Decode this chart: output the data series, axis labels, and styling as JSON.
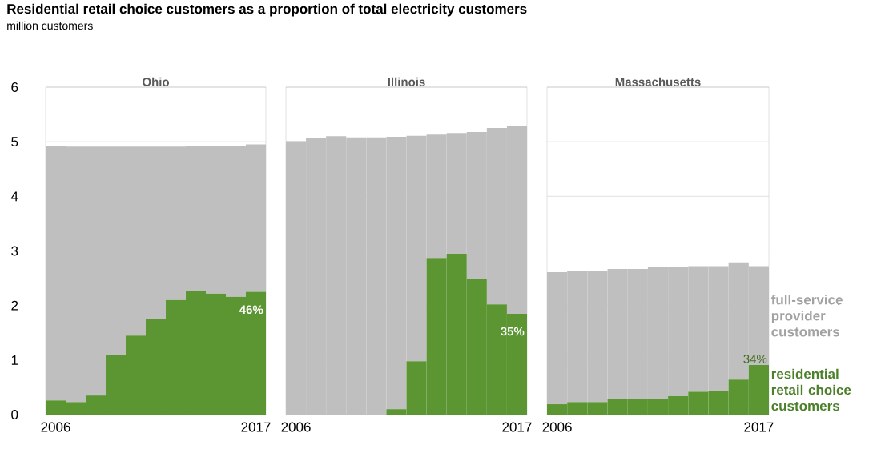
{
  "chart_data": [
    {
      "type": "bar",
      "title": "Residential retail choice customers as a proportion of total electricity customers",
      "ylabel": "million customers",
      "subtitle": "Ohio",
      "stacked": true,
      "grid": "y",
      "categories": [
        "2006",
        null,
        null,
        null,
        null,
        null,
        null,
        null,
        null,
        null,
        "2017"
      ],
      "ylim": [
        0,
        6
      ],
      "yticks": [
        0,
        1,
        2,
        3,
        4,
        5,
        6
      ],
      "series": [
        {
          "color": "#5b9632",
          "values": [
            0.26,
            0.23,
            0.35,
            1.09,
            1.45,
            1.76,
            2.1,
            2.27,
            2.22,
            2.16,
            2.25
          ]
        },
        {
          "color": "#bfbfbf",
          "values": [
            4.67,
            4.68,
            4.56,
            3.82,
            3.46,
            3.15,
            2.81,
            2.65,
            2.7,
            2.76,
            2.7
          ]
        }
      ],
      "annotations": [
        "46%"
      ]
    },
    {
      "type": "bar",
      "subtitle": "Illinois",
      "stacked": true,
      "grid": "y",
      "tick_labels": "x",
      "categories": [
        "2006",
        null,
        null,
        null,
        null,
        null,
        null,
        null,
        null,
        null,
        null,
        "2017"
      ],
      "ylim": [
        0,
        6
      ],
      "yticks": [
        0,
        1,
        2,
        3,
        4,
        5,
        6
      ],
      "series": [
        {
          "color": "#5b9632",
          "values": [
            0,
            0,
            0,
            0,
            0,
            0.1,
            0.98,
            2.87,
            2.95,
            2.48,
            2.02,
            1.85
          ]
        },
        {
          "color": "#bfbfbf",
          "values": [
            5.01,
            5.07,
            5.1,
            5.08,
            5.08,
            4.99,
            4.13,
            2.26,
            2.21,
            2.7,
            3.23,
            3.43
          ]
        }
      ],
      "annotations": [
        "35%"
      ]
    },
    {
      "type": "bar",
      "subtitle": "Massachusetts",
      "stacked": true,
      "grid": "y",
      "tick_labels": "x",
      "categories": [
        "2006",
        null,
        null,
        null,
        null,
        null,
        null,
        null,
        null,
        null,
        "2017"
      ],
      "ylim": [
        0,
        6
      ],
      "yticks": [
        0,
        1,
        2,
        3,
        4,
        5,
        6
      ],
      "series": [
        {
          "name": "residential retail choice customers",
          "color": "#5b9632",
          "values": [
            0.19,
            0.23,
            0.23,
            0.29,
            0.29,
            0.29,
            0.34,
            0.42,
            0.44,
            0.64,
            0.91
          ]
        },
        {
          "name": "full-service provider customers",
          "color": "#bfbfbf",
          "values": [
            2.42,
            2.41,
            2.41,
            2.38,
            2.38,
            2.41,
            2.36,
            2.3,
            2.28,
            2.15,
            1.81
          ]
        }
      ],
      "annotations": [
        "34%"
      ]
    }
  ]
}
